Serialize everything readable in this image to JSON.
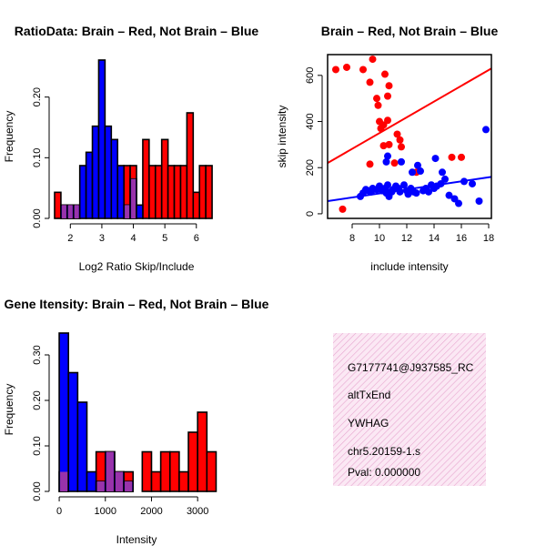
{
  "colors": {
    "red": "#ff0000",
    "blue": "#0000ff",
    "purple": "#9933aa",
    "panel": "#f7dcee",
    "pval": "#8b0000"
  },
  "chart_data": [
    {
      "type": "bar",
      "title": "RatioData: Brain – Red, Not Brain – Blue",
      "xlabel": "Log2 Ratio Skip/Include",
      "ylabel": "Frequency",
      "xlim": [
        1.5,
        6.7
      ],
      "ylim": [
        0,
        0.27
      ],
      "xticks": [
        2,
        3,
        4,
        5,
        6
      ],
      "yticks": [
        0.0,
        0.1,
        0.2
      ],
      "bin_width": 0.2,
      "series": [
        {
          "name": "Brain",
          "color": "red",
          "bins": [
            {
              "x": 1.6,
              "y": 0.043
            },
            {
              "x": 1.8,
              "y": 0.022
            },
            {
              "x": 2.0,
              "y": 0.022
            },
            {
              "x": 2.2,
              "y": 0.022
            },
            {
              "x": 3.8,
              "y": 0.087
            },
            {
              "x": 4.0,
              "y": 0.087
            },
            {
              "x": 4.4,
              "y": 0.13
            },
            {
              "x": 4.6,
              "y": 0.087
            },
            {
              "x": 4.8,
              "y": 0.087
            },
            {
              "x": 5.0,
              "y": 0.13
            },
            {
              "x": 5.2,
              "y": 0.087
            },
            {
              "x": 5.4,
              "y": 0.087
            },
            {
              "x": 5.6,
              "y": 0.087
            },
            {
              "x": 5.8,
              "y": 0.174
            },
            {
              "x": 6.0,
              "y": 0.043
            },
            {
              "x": 6.2,
              "y": 0.087
            },
            {
              "x": 6.4,
              "y": 0.087
            }
          ]
        },
        {
          "name": "Not Brain",
          "color": "blue",
          "bins": [
            {
              "x": 1.8,
              "y": 0.022
            },
            {
              "x": 2.0,
              "y": 0.022
            },
            {
              "x": 2.2,
              "y": 0.022
            },
            {
              "x": 2.4,
              "y": 0.087
            },
            {
              "x": 2.6,
              "y": 0.109
            },
            {
              "x": 2.8,
              "y": 0.152
            },
            {
              "x": 3.0,
              "y": 0.261
            },
            {
              "x": 3.2,
              "y": 0.152
            },
            {
              "x": 3.4,
              "y": 0.13
            },
            {
              "x": 3.6,
              "y": 0.087
            },
            {
              "x": 3.8,
              "y": 0.022
            },
            {
              "x": 4.0,
              "y": 0.065
            },
            {
              "x": 4.2,
              "y": 0.022
            }
          ]
        }
      ]
    },
    {
      "type": "scatter",
      "title": "Brain – Red, Not Brain – Blue",
      "xlabel": "include intensity",
      "ylabel": "skip intensity",
      "xlim": [
        6.2,
        18.2
      ],
      "ylim": [
        -20,
        690
      ],
      "xticks": [
        8,
        10,
        12,
        14,
        16,
        18
      ],
      "yticks": [
        0,
        200,
        400,
        600
      ],
      "series": [
        {
          "name": "Brain",
          "color": "red",
          "points": [
            [
              6.8,
              625
            ],
            [
              7.6,
              635
            ],
            [
              9.5,
              670
            ],
            [
              8.8,
              625
            ],
            [
              9.3,
              570
            ],
            [
              10.4,
              605
            ],
            [
              10.7,
              555
            ],
            [
              10.6,
              510
            ],
            [
              9.8,
              500
            ],
            [
              9.9,
              470
            ],
            [
              10.0,
              400
            ],
            [
              10.6,
              405
            ],
            [
              10.3,
              385
            ],
            [
              10.1,
              370
            ],
            [
              11.3,
              345
            ],
            [
              11.5,
              320
            ],
            [
              11.6,
              290
            ],
            [
              10.7,
              300
            ],
            [
              10.3,
              295
            ],
            [
              12.7,
              180
            ],
            [
              11.1,
              220
            ],
            [
              9.3,
              215
            ],
            [
              15.3,
              245
            ],
            [
              16.0,
              245
            ],
            [
              7.3,
              20
            ]
          ]
        },
        {
          "name": "Not Brain",
          "color": "blue",
          "points": [
            [
              8.6,
              75
            ],
            [
              8.8,
              90
            ],
            [
              9.0,
              105
            ],
            [
              9.2,
              100
            ],
            [
              9.4,
              95
            ],
            [
              9.5,
              110
            ],
            [
              9.8,
              105
            ],
            [
              10.0,
              120
            ],
            [
              10.2,
              100
            ],
            [
              10.4,
              110
            ],
            [
              10.5,
              90
            ],
            [
              10.6,
              125
            ],
            [
              10.7,
              75
            ],
            [
              10.8,
              95
            ],
            [
              11.0,
              105
            ],
            [
              11.2,
              120
            ],
            [
              11.4,
              110
            ],
            [
              11.5,
              95
            ],
            [
              11.8,
              125
            ],
            [
              12.0,
              100
            ],
            [
              12.1,
              85
            ],
            [
              12.3,
              110
            ],
            [
              12.5,
              95
            ],
            [
              12.7,
              90
            ],
            [
              12.8,
              210
            ],
            [
              13.0,
              185
            ],
            [
              13.2,
              100
            ],
            [
              13.4,
              110
            ],
            [
              13.6,
              95
            ],
            [
              13.8,
              125
            ],
            [
              14.0,
              110
            ],
            [
              14.2,
              120
            ],
            [
              14.5,
              130
            ],
            [
              14.8,
              150
            ],
            [
              15.1,
              80
            ],
            [
              15.5,
              65
            ],
            [
              15.8,
              45
            ],
            [
              16.2,
              140
            ],
            [
              16.8,
              130
            ],
            [
              17.3,
              55
            ],
            [
              17.8,
              365
            ],
            [
              10.5,
              225
            ],
            [
              10.6,
              250
            ],
            [
              11.6,
              225
            ],
            [
              12.4,
              180
            ],
            [
              14.6,
              180
            ],
            [
              14.1,
              240
            ],
            [
              10.9,
              95
            ]
          ]
        }
      ],
      "fit_lines": [
        {
          "name": "Brain",
          "color": "red",
          "x": [
            6.2,
            18.2
          ],
          "y": [
            220,
            630
          ]
        },
        {
          "name": "Not Brain",
          "color": "blue",
          "x": [
            6.2,
            18.2
          ],
          "y": [
            55,
            160
          ]
        }
      ]
    },
    {
      "type": "bar",
      "title": "Gene Itensity: Brain – Red, Not Brain – Blue",
      "xlabel": "Intensity",
      "ylabel": "Frequency",
      "xlim": [
        -100,
        3450
      ],
      "ylim": [
        0,
        0.36
      ],
      "xticks": [
        0,
        1000,
        2000,
        3000
      ],
      "yticks": [
        0.0,
        0.1,
        0.2,
        0.3
      ],
      "bin_width": 200,
      "series": [
        {
          "name": "Brain",
          "color": "red",
          "bins": [
            {
              "x": 100,
              "y": 0.043
            },
            {
              "x": 900,
              "y": 0.087
            },
            {
              "x": 1100,
              "y": 0.087
            },
            {
              "x": 1300,
              "y": 0.043
            },
            {
              "x": 1500,
              "y": 0.043
            },
            {
              "x": 1900,
              "y": 0.087
            },
            {
              "x": 2100,
              "y": 0.043
            },
            {
              "x": 2300,
              "y": 0.087
            },
            {
              "x": 2500,
              "y": 0.087
            },
            {
              "x": 2700,
              "y": 0.043
            },
            {
              "x": 2900,
              "y": 0.13
            },
            {
              "x": 3100,
              "y": 0.174
            },
            {
              "x": 3300,
              "y": 0.087
            }
          ]
        },
        {
          "name": "Not Brain",
          "color": "blue",
          "bins": [
            {
              "x": 100,
              "y": 0.348
            },
            {
              "x": 300,
              "y": 0.261
            },
            {
              "x": 500,
              "y": 0.196
            },
            {
              "x": 700,
              "y": 0.043
            },
            {
              "x": 900,
              "y": 0.022
            },
            {
              "x": 1100,
              "y": 0.087
            },
            {
              "x": 1300,
              "y": 0.043
            },
            {
              "x": 1500,
              "y": 0.022
            }
          ]
        }
      ]
    }
  ],
  "info_panel": {
    "line1": "G7177741@J937585_RC",
    "line2": "altTxEnd",
    "line3": "YWHAG",
    "line4": "chr5.20159-1.s",
    "pval": "Pval: 0.000000"
  }
}
